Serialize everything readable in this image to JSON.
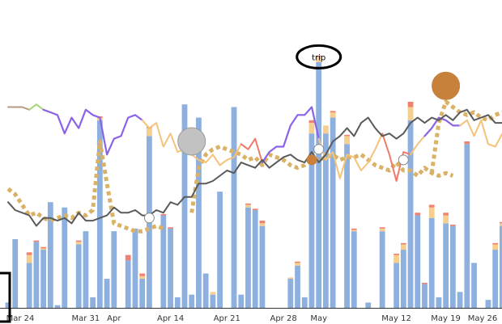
{
  "chart_data": {
    "type": "bar",
    "x_ticks": [
      "Mar 24",
      "Mar 31",
      "Apr",
      "Apr 14",
      "Apr 21",
      "Apr 28",
      "May",
      "May 12",
      "May 19",
      "May 26"
    ],
    "ylim": [
      0,
      100
    ],
    "grid": false,
    "colors": {
      "bar_base": "#8eb0de",
      "bar_mid": "#f5cf8e",
      "bar_top": "#f08070",
      "line_purple": "#8a63e8",
      "line_orange": "#f5c27a",
      "line_red": "#f07a6a",
      "line_green": "#a8d878",
      "line_brown": "#b99a80",
      "line_dark": "#5a5a5a",
      "dotted": "#d9b266",
      "marker_grey": "#c2c2c2",
      "marker_brown": "#c8813a",
      "marker_white": "#ffffff"
    },
    "bars": [
      {
        "v": 2
      },
      {
        "v": 26
      },
      {
        "v": 0
      },
      {
        "v": 17,
        "mid": 3,
        "top": 1
      },
      {
        "v": 25,
        "mid": 0,
        "top": 0.5
      },
      {
        "v": 22,
        "mid": 0.5,
        "top": 0.5
      },
      {
        "v": 40
      },
      {
        "v": 1
      },
      {
        "v": 38
      },
      {
        "v": 0
      },
      {
        "v": 24,
        "mid": 1,
        "top": 0.5
      },
      {
        "v": 29
      },
      {
        "v": 4
      },
      {
        "v": 71,
        "mid": 1,
        "top": 0.5
      },
      {
        "v": 11
      },
      {
        "v": 29
      },
      {
        "v": 0
      },
      {
        "v": 18,
        "mid": 0,
        "top": 2
      },
      {
        "v": 30
      },
      {
        "v": 11,
        "mid": 1,
        "top": 1
      },
      {
        "v": 65,
        "mid": 3,
        "top": 0.5
      },
      {
        "v": 0
      },
      {
        "v": 35,
        "mid": 0,
        "top": 0.5
      },
      {
        "v": 30,
        "mid": 0,
        "top": 0.5
      },
      {
        "v": 4
      },
      {
        "v": 77
      },
      {
        "v": 5
      },
      {
        "v": 72
      },
      {
        "v": 13
      },
      {
        "v": 5,
        "mid": 1
      },
      {
        "v": 44
      },
      {
        "v": 0
      },
      {
        "v": 76
      },
      {
        "v": 5
      },
      {
        "v": 38,
        "mid": 1,
        "top": 0.5
      },
      {
        "v": 37,
        "mid": 0,
        "top": 0.5
      },
      {
        "v": 31,
        "mid": 1,
        "top": 1
      },
      {
        "v": 0
      },
      {
        "v": 0
      },
      {
        "v": 0
      },
      {
        "v": 11,
        "mid": 0.5
      },
      {
        "v": 16,
        "mid": 1,
        "top": 0.5
      },
      {
        "v": 4
      },
      {
        "v": 66,
        "mid": 4,
        "top": 1
      },
      {
        "v": 93,
        "mid": 2,
        "top": 0.5
      },
      {
        "v": 66,
        "mid": 3
      },
      {
        "v": 72,
        "mid": 2,
        "top": 0.5
      },
      {
        "v": 0
      },
      {
        "v": 62,
        "mid": 3,
        "top": 0.5
      },
      {
        "v": 29,
        "mid": 0.5,
        "top": 0.5
      },
      {
        "v": 0
      },
      {
        "v": 2
      },
      {
        "v": 0
      },
      {
        "v": 29,
        "mid": 1,
        "top": 0.5
      },
      {
        "v": 0
      },
      {
        "v": 17,
        "mid": 3,
        "top": 0.5
      },
      {
        "v": 22,
        "mid": 2,
        "top": 0.5
      },
      {
        "v": 71,
        "mid": 5,
        "top": 2
      },
      {
        "v": 35,
        "mid": 0,
        "top": 1
      },
      {
        "v": 9,
        "mid": 0,
        "top": 0.5
      },
      {
        "v": 34,
        "mid": 4,
        "top": 1
      },
      {
        "v": 4
      },
      {
        "v": 32,
        "mid": 3,
        "top": 1
      },
      {
        "v": 31,
        "mid": 0,
        "top": 0.5
      },
      {
        "v": 6
      },
      {
        "v": 62,
        "mid": 0,
        "top": 1
      },
      {
        "v": 17
      },
      {
        "v": 0
      },
      {
        "v": 3
      },
      {
        "v": 22,
        "mid": 2,
        "top": 0.5
      },
      {
        "v": 31,
        "mid": 1,
        "top": 0.5
      }
    ],
    "lines": [
      {
        "color_key": "line_brown",
        "width": 2,
        "points": [
          [
            0,
            76
          ],
          [
            2,
            76
          ],
          [
            3,
            75
          ]
        ]
      },
      {
        "color_key": "line_green",
        "width": 2,
        "points": [
          [
            3,
            75
          ],
          [
            4,
            77
          ],
          [
            5,
            75
          ]
        ]
      },
      {
        "color_key": "line_purple",
        "width": 2.2,
        "points": [
          [
            5,
            75
          ],
          [
            6,
            74
          ],
          [
            7,
            73
          ],
          [
            8,
            66
          ],
          [
            9,
            72
          ],
          [
            10,
            68
          ],
          [
            11,
            75
          ],
          [
            12,
            73
          ],
          [
            13,
            72
          ],
          [
            14,
            58
          ],
          [
            15,
            64
          ],
          [
            16,
            65
          ],
          [
            17,
            72
          ],
          [
            18,
            73
          ],
          [
            19,
            71
          ]
        ]
      },
      {
        "color_key": "line_orange",
        "width": 2,
        "points": [
          [
            19,
            71
          ],
          [
            20,
            68
          ],
          [
            21,
            70
          ],
          [
            22,
            61
          ],
          [
            23,
            66
          ],
          [
            24,
            59
          ],
          [
            25,
            60
          ],
          [
            26,
            58
          ],
          [
            27,
            56
          ],
          [
            28,
            55
          ],
          [
            29,
            58
          ],
          [
            30,
            54
          ],
          [
            31,
            56
          ],
          [
            32,
            57
          ],
          [
            33,
            62
          ]
        ]
      },
      {
        "color_key": "line_red",
        "width": 2,
        "points": [
          [
            33,
            62
          ],
          [
            34,
            60
          ],
          [
            35,
            64
          ],
          [
            36,
            55
          ]
        ]
      },
      {
        "color_key": "line_purple",
        "width": 2.2,
        "points": [
          [
            36,
            55
          ],
          [
            37,
            59
          ],
          [
            38,
            61
          ],
          [
            39,
            61
          ],
          [
            40,
            69
          ],
          [
            41,
            73
          ],
          [
            42,
            73
          ],
          [
            43,
            76
          ],
          [
            44,
            64
          ]
        ]
      },
      {
        "color_key": "line_orange",
        "width": 2,
        "points": [
          [
            44,
            64
          ],
          [
            45,
            56
          ],
          [
            46,
            59
          ],
          [
            47,
            49
          ],
          [
            48,
            58
          ],
          [
            49,
            57
          ],
          [
            50,
            52
          ],
          [
            51,
            55
          ],
          [
            52,
            60
          ],
          [
            53,
            66
          ]
        ]
      },
      {
        "color_key": "line_red",
        "width": 2,
        "points": [
          [
            53,
            66
          ],
          [
            54,
            58
          ],
          [
            55,
            48
          ],
          [
            56,
            59
          ],
          [
            57,
            58
          ]
        ]
      },
      {
        "color_key": "line_orange",
        "width": 2,
        "points": [
          [
            57,
            58
          ],
          [
            58,
            62
          ],
          [
            59,
            65
          ]
        ]
      },
      {
        "color_key": "line_purple",
        "width": 2.2,
        "points": [
          [
            59,
            65
          ],
          [
            60,
            68
          ],
          [
            61,
            72
          ],
          [
            62,
            71
          ],
          [
            63,
            69
          ],
          [
            64,
            69
          ]
        ]
      },
      {
        "color_key": "line_orange",
        "width": 2,
        "points": [
          [
            64,
            69
          ],
          [
            65,
            71
          ],
          [
            66,
            65
          ],
          [
            67,
            71
          ],
          [
            68,
            62
          ],
          [
            69,
            61
          ],
          [
            70,
            66
          ]
        ]
      },
      {
        "color_key": "line_dark",
        "width": 2,
        "points": [
          [
            0,
            40
          ],
          [
            1,
            37
          ],
          [
            2,
            36
          ],
          [
            3,
            35
          ],
          [
            4,
            31
          ],
          [
            5,
            34
          ],
          [
            6,
            34
          ],
          [
            7,
            33
          ],
          [
            8,
            34
          ],
          [
            9,
            32
          ],
          [
            10,
            36
          ],
          [
            11,
            33
          ],
          [
            12,
            33
          ],
          [
            13,
            34
          ],
          [
            14,
            35
          ],
          [
            15,
            38
          ],
          [
            16,
            36
          ],
          [
            17,
            36
          ],
          [
            18,
            37
          ],
          [
            19,
            35
          ],
          [
            20,
            35
          ],
          [
            21,
            37
          ],
          [
            22,
            36
          ],
          [
            23,
            40
          ],
          [
            24,
            39
          ],
          [
            25,
            42
          ],
          [
            26,
            42
          ],
          [
            27,
            47
          ],
          [
            28,
            47
          ],
          [
            29,
            48
          ],
          [
            30,
            50
          ],
          [
            31,
            52
          ],
          [
            32,
            51
          ],
          [
            33,
            55
          ],
          [
            34,
            54
          ],
          [
            35,
            53
          ],
          [
            36,
            56
          ],
          [
            37,
            53
          ],
          [
            38,
            55
          ],
          [
            39,
            57
          ],
          [
            40,
            58
          ],
          [
            41,
            56
          ],
          [
            42,
            55
          ],
          [
            43,
            59
          ],
          [
            44,
            55
          ],
          [
            45,
            58
          ],
          [
            46,
            63
          ],
          [
            47,
            65
          ],
          [
            48,
            68
          ],
          [
            49,
            65
          ],
          [
            50,
            70
          ],
          [
            51,
            72
          ],
          [
            52,
            68
          ],
          [
            53,
            65
          ],
          [
            54,
            66
          ],
          [
            55,
            64
          ],
          [
            56,
            66
          ],
          [
            57,
            70
          ],
          [
            58,
            72
          ],
          [
            59,
            70
          ],
          [
            60,
            72
          ],
          [
            61,
            71
          ],
          [
            62,
            73
          ],
          [
            63,
            71
          ],
          [
            64,
            74
          ],
          [
            65,
            75
          ],
          [
            66,
            71
          ],
          [
            67,
            72
          ],
          [
            68,
            73
          ],
          [
            69,
            70
          ],
          [
            70,
            70
          ]
        ]
      }
    ],
    "dotted_lines": [
      {
        "points": [
          [
            0,
            45
          ],
          [
            1,
            43
          ],
          [
            2,
            39
          ],
          [
            3,
            35
          ],
          [
            4,
            36
          ],
          [
            5,
            34
          ],
          [
            6,
            33
          ],
          [
            7,
            34
          ],
          [
            8,
            35
          ],
          [
            9,
            34
          ],
          [
            10,
            36
          ],
          [
            11,
            35
          ],
          [
            12,
            37
          ],
          [
            13,
            63
          ],
          [
            14,
            47
          ],
          [
            15,
            32
          ],
          [
            16,
            31
          ],
          [
            17,
            30
          ],
          [
            18,
            29
          ],
          [
            19,
            29
          ],
          [
            20,
            30
          ],
          [
            21,
            31
          ],
          [
            22,
            30
          ]
        ]
      },
      {
        "points": [
          [
            26,
            36
          ],
          [
            27,
            53
          ],
          [
            28,
            58
          ],
          [
            29,
            60
          ],
          [
            30,
            61
          ],
          [
            31,
            60
          ],
          [
            32,
            59
          ],
          [
            33,
            58
          ],
          [
            34,
            56
          ],
          [
            35,
            57
          ],
          [
            36,
            54
          ],
          [
            37,
            58
          ],
          [
            38,
            57
          ],
          [
            39,
            56
          ],
          [
            40,
            54
          ],
          [
            41,
            53
          ],
          [
            42,
            54
          ],
          [
            43,
            56
          ],
          [
            44,
            56
          ],
          [
            45,
            57
          ],
          [
            46,
            58
          ],
          [
            47,
            56
          ],
          [
            48,
            57
          ],
          [
            49,
            57
          ],
          [
            50,
            58
          ],
          [
            51,
            56
          ],
          [
            52,
            54
          ],
          [
            53,
            53
          ],
          [
            54,
            52
          ],
          [
            55,
            55
          ],
          [
            56,
            52
          ],
          [
            57,
            52
          ],
          [
            58,
            50
          ],
          [
            59,
            53
          ],
          [
            60,
            51
          ],
          [
            61,
            50
          ],
          [
            62,
            51
          ],
          [
            63,
            50
          ]
        ]
      },
      {
        "points": [
          [
            60,
            51
          ],
          [
            61,
            70
          ],
          [
            62,
            78
          ],
          [
            63,
            76
          ],
          [
            64,
            74
          ],
          [
            65,
            73
          ],
          [
            66,
            74
          ],
          [
            67,
            72
          ],
          [
            68,
            71
          ],
          [
            69,
            73
          ],
          [
            70,
            74
          ]
        ]
      }
    ],
    "markers": [
      {
        "x": 20,
        "y": 34,
        "r": 6,
        "color_key": "marker_white",
        "stroke": "#888888"
      },
      {
        "x": 26,
        "y": 63,
        "r": 17,
        "color_key": "marker_grey",
        "stroke": "#999999"
      },
      {
        "x": 43,
        "y": 56,
        "r": 6,
        "color_key": "marker_brown",
        "stroke": "#c8813a"
      },
      {
        "x": 44,
        "y": 60,
        "r": 6,
        "color_key": "marker_white",
        "stroke": "#888888"
      },
      {
        "x": 56,
        "y": 56,
        "r": 6,
        "color_key": "marker_white",
        "stroke": "#888888"
      },
      {
        "x": 62,
        "y": 84,
        "r": 17,
        "color_key": "marker_brown",
        "stroke": "#c8813a"
      }
    ],
    "annotation": {
      "text": "trip",
      "x": 44,
      "y": 95
    }
  }
}
